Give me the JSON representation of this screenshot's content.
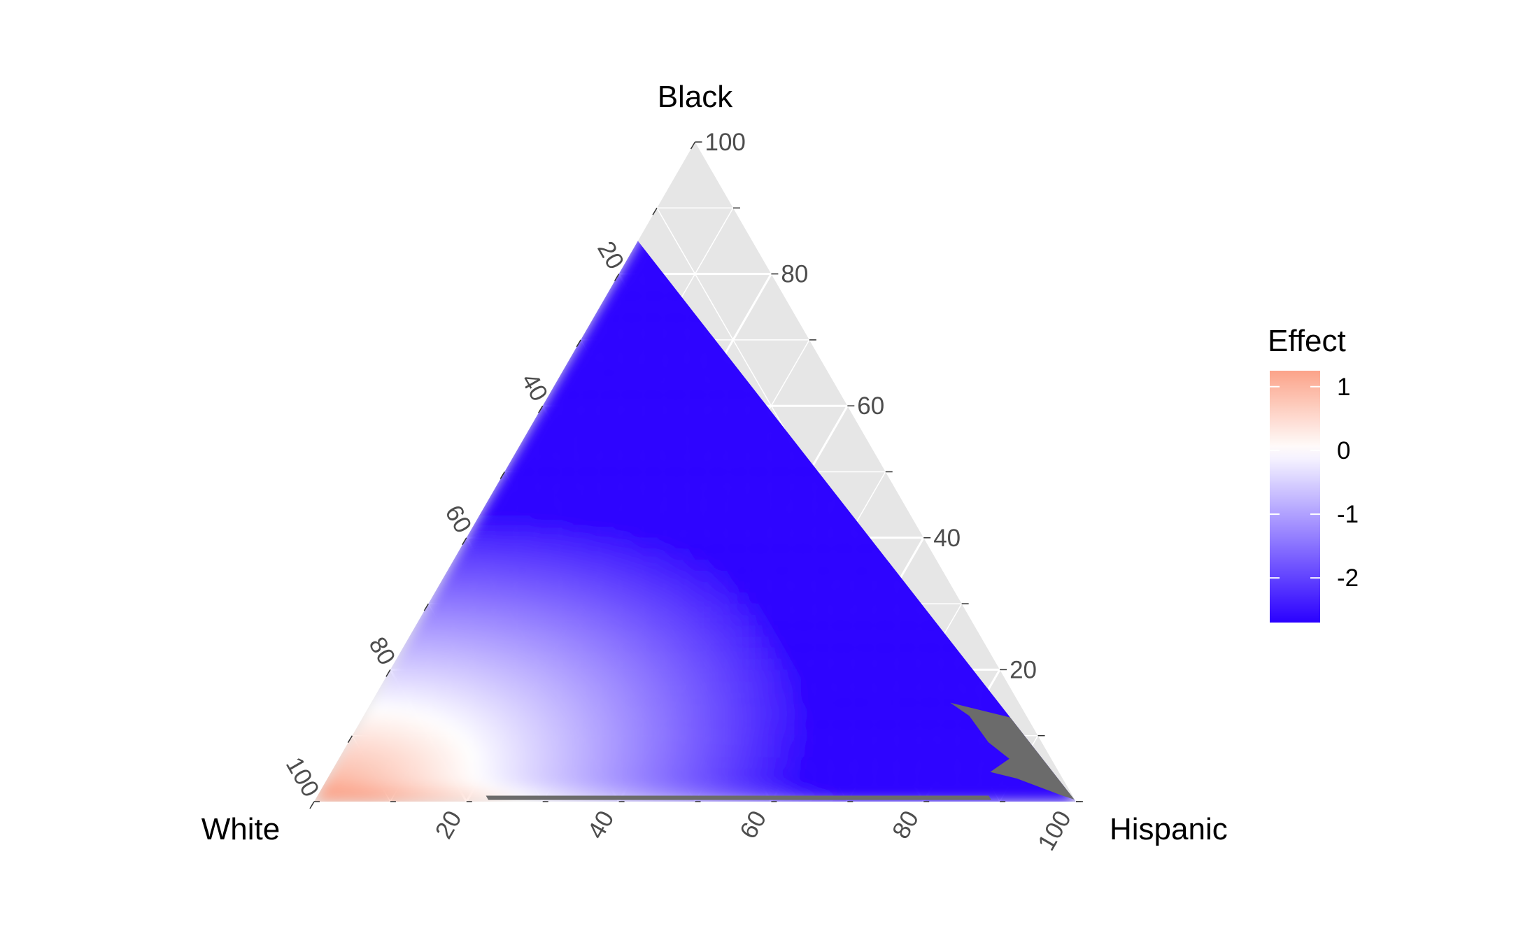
{
  "chart_data": {
    "type": "heatmap",
    "subtype": "ternary",
    "apex_labels": {
      "top": "Black",
      "left": "White",
      "right": "Hispanic"
    },
    "axis_ticks": [
      "20",
      "40",
      "60",
      "80",
      "100"
    ],
    "data_region": {
      "description_components": [
        "White",
        "Black",
        "Hispanic"
      ],
      "max_black_percent": 85
    },
    "color_scale": {
      "title": "Effect",
      "min": -2.7,
      "max": 1.25,
      "ticks": [
        "1",
        "0",
        "-1",
        "-2"
      ],
      "tick_values": [
        1,
        0,
        -1,
        -2
      ],
      "low_color": "#2a00ff",
      "mid_color": "#ffffff",
      "high_color": "#fca389"
    },
    "effect_samples": [
      {
        "White": 100,
        "Black": 0,
        "Hispanic": 0,
        "effect": 1.2
      },
      {
        "White": 85,
        "Black": 5,
        "Hispanic": 10,
        "effect": 0.0
      },
      {
        "White": 60,
        "Black": 30,
        "Hispanic": 10,
        "effect": -0.8
      },
      {
        "White": 15,
        "Black": 85,
        "Hispanic": 0,
        "effect": -2.7
      },
      {
        "White": 30,
        "Black": 40,
        "Hispanic": 30,
        "effect": -1.5
      },
      {
        "White": 30,
        "Black": 10,
        "Hispanic": 60,
        "effect": -1.0
      },
      {
        "White": 5,
        "Black": 5,
        "Hispanic": 90,
        "effect": -2.0
      }
    ],
    "na_color": "#6b6b6b",
    "background_color": "#e6e6e6",
    "grid": true,
    "legend_position": "right"
  }
}
